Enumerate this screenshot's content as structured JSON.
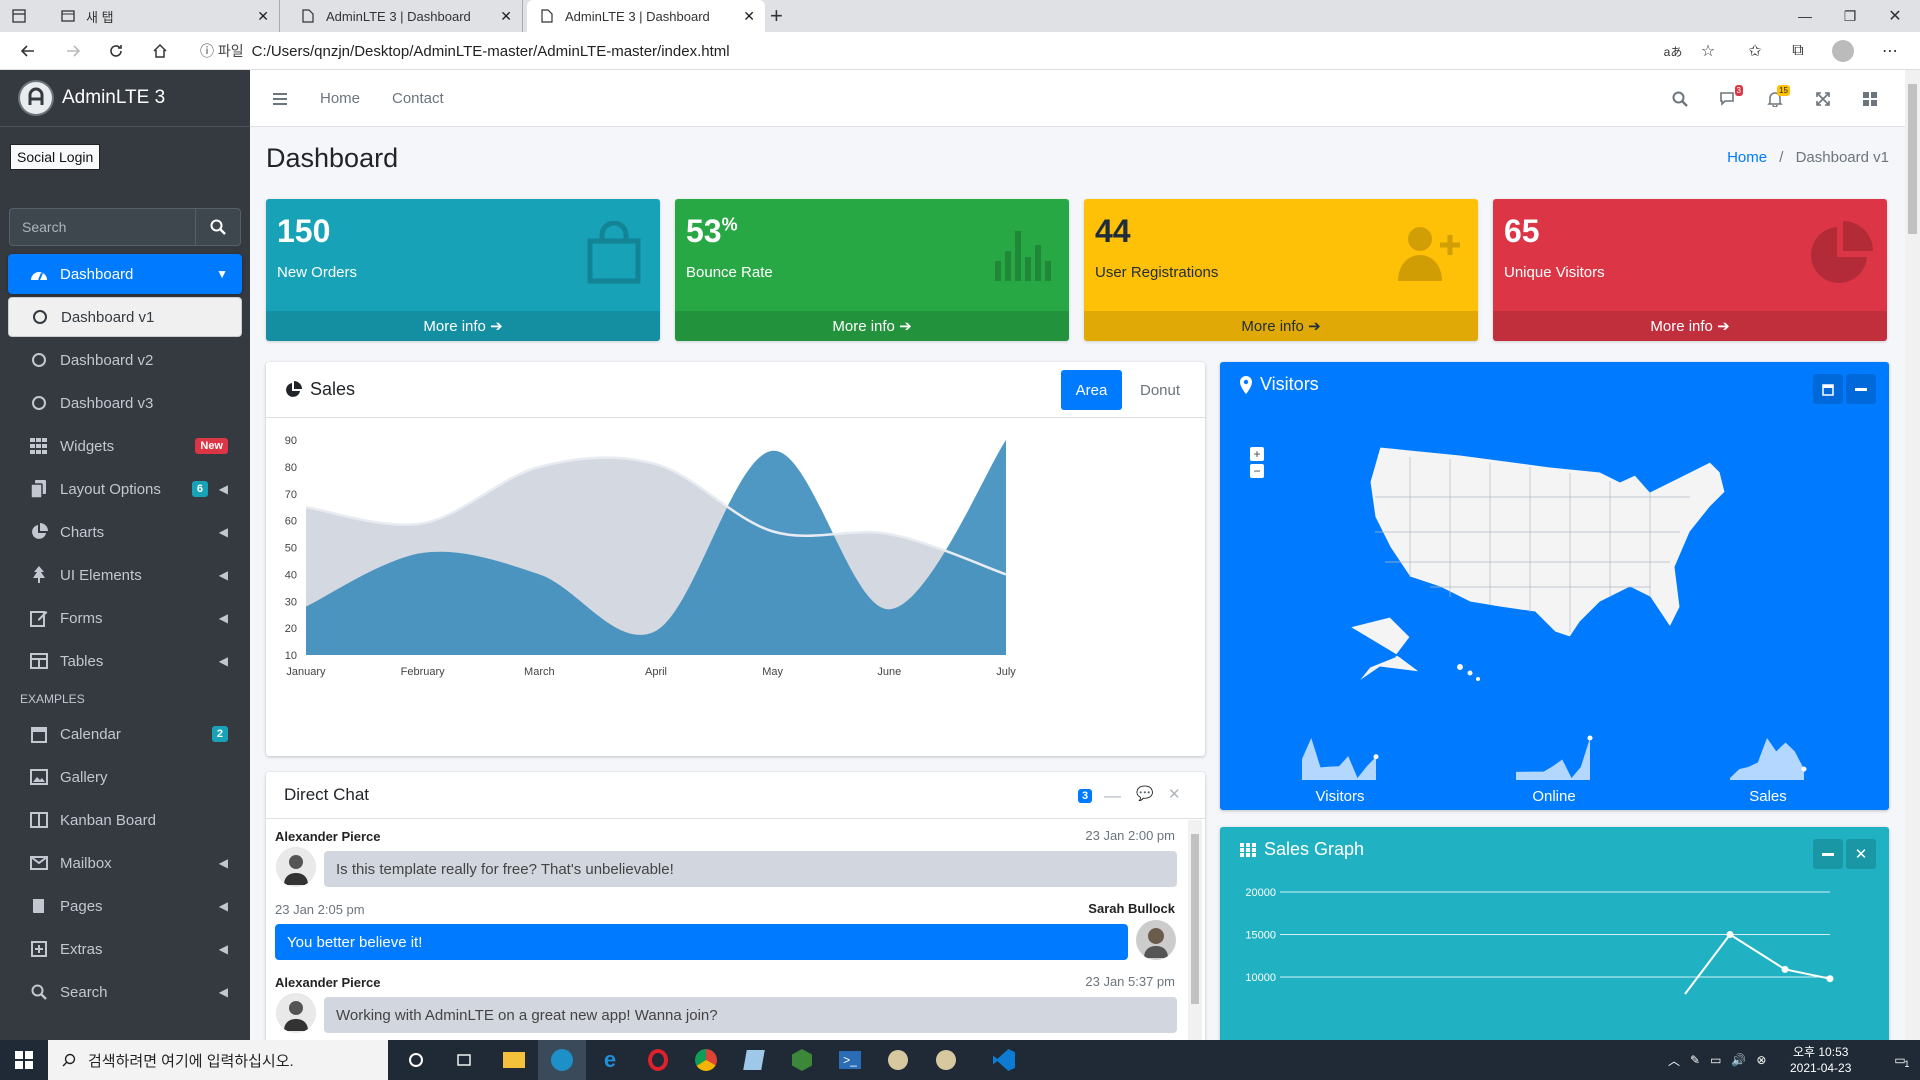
{
  "browser": {
    "tabs": [
      {
        "label": "새 탭",
        "icon": "new-tab-icon"
      },
      {
        "label": "AdminLTE 3 | Dashboard",
        "icon": "page-icon"
      },
      {
        "label": "AdminLTE 3 | Dashboard",
        "icon": "page-icon"
      }
    ],
    "address": {
      "info_label": "ⓘ 파일",
      "url": "C:/Users/qnzjn/Desktop/AdminLTE-master/AdminLTE-master/index.html"
    },
    "read_aloud": "aあ"
  },
  "sidebar": {
    "brand": "AdminLTE 3",
    "social_login": "Social Login",
    "search_placeholder": "Search",
    "items": [
      {
        "label": "Dashboard",
        "icon": "dashboard-icon"
      },
      {
        "label": "Dashboard v1",
        "icon": "circle-icon"
      },
      {
        "label": "Dashboard v2",
        "icon": "circle-icon"
      },
      {
        "label": "Dashboard v3",
        "icon": "circle-icon"
      },
      {
        "label": "Widgets",
        "icon": "widgets-icon",
        "badge": "New"
      },
      {
        "label": "Layout Options",
        "icon": "copy-icon",
        "badge": "6"
      },
      {
        "label": "Charts",
        "icon": "chart-pie-icon"
      },
      {
        "label": "UI Elements",
        "icon": "tree-icon"
      },
      {
        "label": "Forms",
        "icon": "edit-icon"
      },
      {
        "label": "Tables",
        "icon": "table-icon"
      }
    ],
    "examples_header": "EXAMPLES",
    "examples": [
      {
        "label": "Calendar",
        "icon": "calendar-icon",
        "badge": "2"
      },
      {
        "label": "Gallery",
        "icon": "image-icon"
      },
      {
        "label": "Kanban Board",
        "icon": "columns-icon"
      },
      {
        "label": "Mailbox",
        "icon": "envelope-icon"
      },
      {
        "label": "Pages",
        "icon": "book-icon"
      },
      {
        "label": "Extras",
        "icon": "plus-square-icon"
      },
      {
        "label": "Search",
        "icon": "search-icon"
      }
    ]
  },
  "topnav": {
    "home": "Home",
    "contact": "Contact",
    "messages_badge": "3",
    "notifications_badge": "15"
  },
  "page": {
    "title": "Dashboard",
    "breadcrumb_home": "Home",
    "breadcrumb_sep": "/",
    "breadcrumb_current": "Dashboard v1"
  },
  "stats": [
    {
      "value": "150",
      "suffix": "",
      "label": "New Orders",
      "link": "More info",
      "color": "#17a2b8",
      "icon": "shopping-bag-icon"
    },
    {
      "value": "53",
      "suffix": "%",
      "label": "Bounce Rate",
      "link": "More info",
      "color": "#28a745",
      "icon": "bar-chart-icon"
    },
    {
      "value": "44",
      "suffix": "",
      "label": "User Registrations",
      "link": "More info",
      "color": "#ffc107",
      "icon": "user-plus-icon"
    },
    {
      "value": "65",
      "suffix": "",
      "label": "Unique Visitors",
      "link": "More info",
      "color": "#dc3545",
      "icon": "pie-chart-icon"
    }
  ],
  "sales": {
    "title": "Sales",
    "tab_area": "Area",
    "tab_donut": "Donut"
  },
  "chart_data": [
    {
      "type": "area",
      "title": "Sales",
      "categories": [
        "January",
        "February",
        "March",
        "April",
        "May",
        "June",
        "July"
      ],
      "series": [
        {
          "values": [
            65,
            59,
            80,
            81,
            56,
            55,
            40
          ],
          "color": "#d2d6de"
        },
        {
          "values": [
            28,
            48,
            40,
            19,
            86,
            27,
            90
          ],
          "color": "#3c8dbc"
        }
      ],
      "ylim": [
        10,
        90
      ],
      "yticks": [
        10,
        20,
        30,
        40,
        50,
        60,
        70,
        80,
        90
      ]
    },
    {
      "type": "line",
      "title": "Sales Graph",
      "yticks": [
        "20000",
        "15000",
        "10000"
      ],
      "ylim": [
        10000,
        20000
      ],
      "points": [
        15000,
        10900,
        9800
      ],
      "color": "#ffffff"
    }
  ],
  "visitors": {
    "title": "Visitors",
    "sparks": [
      {
        "label": "Visitors",
        "values": [
          1000,
          1200,
          920,
          927,
          931,
          1027,
          819,
          930,
          1021
        ]
      },
      {
        "label": "Online",
        "values": [
          515,
          519,
          520,
          522,
          652,
          810,
          370,
          627,
          1319
        ]
      },
      {
        "label": "Sales",
        "values": [
          15,
          19,
          20,
          22,
          33,
          27,
          31,
          27,
          19
        ]
      }
    ]
  },
  "chat": {
    "title": "Direct Chat",
    "badge": "3",
    "messages": [
      {
        "name": "Alexander Pierce",
        "time": "23 Jan 2:00 pm",
        "text": "Is this template really for free? That's unbelievable!",
        "side": "left"
      },
      {
        "name": "Sarah Bullock",
        "time": "23 Jan 2:05 pm",
        "text": "You better believe it!",
        "side": "right"
      },
      {
        "name": "Alexander Pierce",
        "time": "23 Jan 5:37 pm",
        "text": "Working with AdminLTE on a great new app! Wanna join?",
        "side": "left"
      }
    ]
  },
  "sales_graph": {
    "title": "Sales Graph"
  },
  "taskbar": {
    "search_placeholder": "검색하려면 여기에 입력하십시오.",
    "time": "오후 10:53",
    "date": "2021-04-23",
    "notif": "1"
  }
}
